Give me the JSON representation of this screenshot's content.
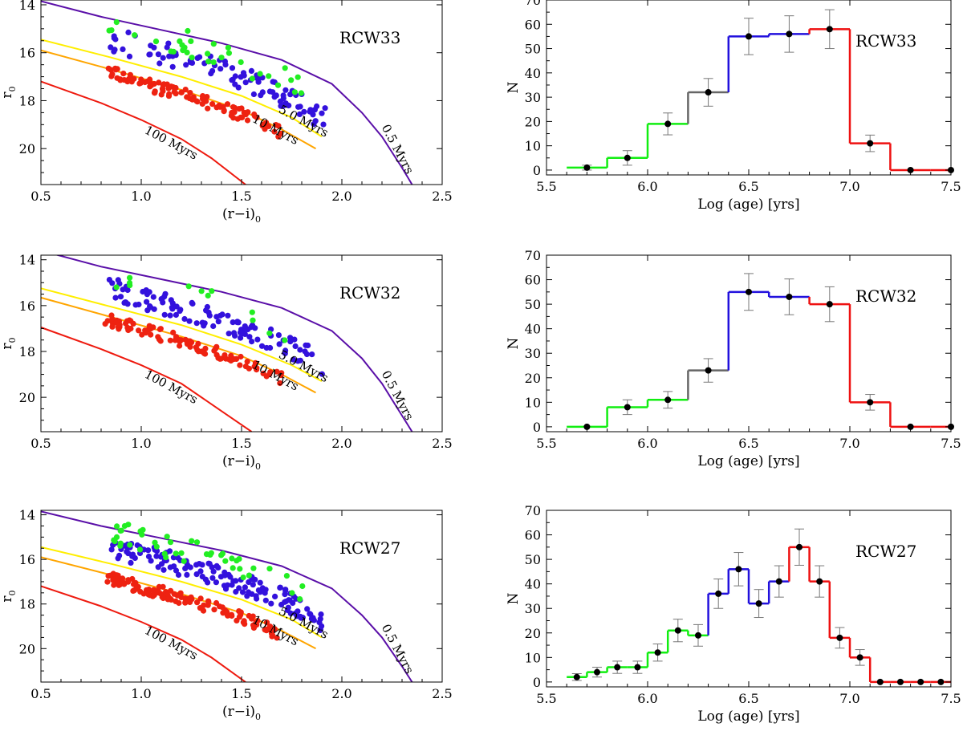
{
  "colors": {
    "frame": "#000000",
    "iso_05": "#5a0fa8",
    "iso_5": "#ffee00",
    "iso_10": "#ffa500",
    "iso_100": "#ee1a0f",
    "dot_young": "#22ee22",
    "dot_mid": "#3311dd",
    "dot_old": "#ee2211",
    "hist_young": "#11ee11",
    "hist_mid": "#2211dd",
    "hist_mixed": "#666666",
    "hist_old": "#ee1111",
    "errorbar": "#777777"
  },
  "chart_data": [
    {
      "type": "scatter",
      "panel": "left",
      "row": 1,
      "region_label": "RCW33",
      "xlabel": "(r−i)",
      "xlabel_sub": "0",
      "ylabel": "r",
      "ylabel_sub": "0",
      "xlim": [
        0.5,
        2.5
      ],
      "ylim": [
        21.5,
        13.8
      ],
      "x_ticks": [
        "0.5",
        "1.0",
        "1.5",
        "2.0",
        "2.5"
      ],
      "y_ticks": [
        "14",
        "16",
        "18",
        "20"
      ],
      "isochrones": [
        {
          "name": "0.5 Myrs",
          "label": "0.5 Myrs",
          "color_key": "iso_05",
          "points": [
            [
              0.5,
              13.85
            ],
            [
              0.8,
              14.5
            ],
            [
              1.1,
              15.05
            ],
            [
              1.4,
              15.6
            ],
            [
              1.7,
              16.3
            ],
            [
              1.95,
              17.3
            ],
            [
              2.1,
              18.5
            ],
            [
              2.2,
              19.5
            ],
            [
              2.3,
              20.8
            ],
            [
              2.35,
              21.5
            ]
          ]
        },
        {
          "name": "5.0 Myrs",
          "label": "5.0 Myrs",
          "color_key": "iso_5",
          "points": [
            [
              0.5,
              15.45
            ],
            [
              0.85,
              16.2
            ],
            [
              1.2,
              17.0
            ],
            [
              1.5,
              17.8
            ],
            [
              1.75,
              18.7
            ],
            [
              1.9,
              19.5
            ]
          ]
        },
        {
          "name": "10 Myrs",
          "label": "10 Myrs",
          "color_key": "iso_10",
          "points": [
            [
              0.5,
              15.9
            ],
            [
              0.85,
              16.7
            ],
            [
              1.2,
              17.55
            ],
            [
              1.5,
              18.4
            ],
            [
              1.7,
              19.2
            ],
            [
              1.87,
              20.0
            ]
          ]
        },
        {
          "name": "100 Myrs",
          "label": "100 Myrs",
          "color_key": "iso_100",
          "points": [
            [
              0.5,
              17.2
            ],
            [
              0.8,
              18.1
            ],
            [
              1.0,
              18.8
            ],
            [
              1.2,
              19.6
            ],
            [
              1.35,
              20.4
            ],
            [
              1.52,
              21.5
            ]
          ]
        }
      ],
      "iso_label_positions": {
        "0.5 Myrs": [
          2.26,
          20.1,
          62
        ],
        "5.0 Myrs": [
          1.8,
          19.0,
          28
        ],
        "10 Myrs": [
          1.66,
          19.35,
          28
        ],
        "100 Myrs": [
          1.14,
          19.9,
          28
        ]
      },
      "seed": 11,
      "star_counts": {
        "young": 32,
        "mid": 95,
        "old": 100
      }
    },
    {
      "type": "histogram",
      "panel": "right",
      "row": 1,
      "region_label": "RCW33",
      "xlabel": "Log (age) [yrs]",
      "ylabel": "N",
      "xlim": [
        5.5,
        7.5
      ],
      "ylim": [
        -2,
        70
      ],
      "x_ticks": [
        "5.5",
        "6.0",
        "6.5",
        "7.0",
        "7.5"
      ],
      "y_ticks": [
        "0",
        "10",
        "20",
        "30",
        "40",
        "50",
        "60",
        "70"
      ],
      "bin_edges": [
        5.6,
        5.8,
        6.0,
        6.2,
        6.4,
        6.6,
        6.8,
        7.0,
        7.2,
        7.4,
        7.6
      ],
      "counts": [
        1,
        5,
        19,
        32,
        55,
        56,
        58,
        11,
        0,
        0
      ],
      "errors": [
        1,
        3,
        4.5,
        5.7,
        7.5,
        7.5,
        8,
        3.4,
        0,
        0
      ],
      "centers": [
        5.7,
        5.9,
        6.1,
        6.3,
        6.5,
        6.7,
        6.9,
        7.1,
        7.3,
        7.5
      ],
      "bin_colors": [
        "hist_young",
        "hist_young",
        "hist_young",
        "hist_mixed",
        "hist_mid",
        "hist_mid",
        "hist_old",
        "hist_old",
        "hist_old",
        "hist_old"
      ]
    },
    {
      "type": "scatter",
      "panel": "left",
      "row": 2,
      "region_label": "RCW32",
      "xlabel": "(r−i)",
      "xlabel_sub": "0",
      "ylabel": "r",
      "ylabel_sub": "0",
      "xlim": [
        0.5,
        2.5
      ],
      "ylim": [
        21.5,
        13.8
      ],
      "x_ticks": [
        "0.5",
        "1.0",
        "1.5",
        "2.0",
        "2.5"
      ],
      "y_ticks": [
        "14",
        "16",
        "18",
        "20"
      ],
      "isochrones": [
        {
          "name": "0.5 Myrs",
          "label": "0.5 Myrs",
          "color_key": "iso_05",
          "points": [
            [
              0.5,
              13.6
            ],
            [
              0.8,
              14.3
            ],
            [
              1.1,
              14.85
            ],
            [
              1.4,
              15.4
            ],
            [
              1.7,
              16.1
            ],
            [
              1.95,
              17.1
            ],
            [
              2.1,
              18.3
            ],
            [
              2.2,
              19.4
            ],
            [
              2.3,
              20.8
            ],
            [
              2.35,
              21.5
            ]
          ]
        },
        {
          "name": "5.0 Myrs",
          "label": "5.0 Myrs",
          "color_key": "iso_5",
          "points": [
            [
              0.5,
              15.25
            ],
            [
              0.85,
              16.05
            ],
            [
              1.2,
              16.85
            ],
            [
              1.5,
              17.7
            ],
            [
              1.75,
              18.6
            ],
            [
              1.9,
              19.3
            ]
          ]
        },
        {
          "name": "10 Myrs",
          "label": "10 Myrs",
          "color_key": "iso_10",
          "points": [
            [
              0.5,
              15.65
            ],
            [
              0.85,
              16.5
            ],
            [
              1.2,
              17.35
            ],
            [
              1.5,
              18.2
            ],
            [
              1.7,
              19.0
            ],
            [
              1.87,
              19.8
            ]
          ]
        },
        {
          "name": "100 Myrs",
          "label": "100 Myrs",
          "color_key": "iso_100",
          "points": [
            [
              0.5,
              16.95
            ],
            [
              0.8,
              17.9
            ],
            [
              1.0,
              18.6
            ],
            [
              1.2,
              19.4
            ],
            [
              1.4,
              20.6
            ],
            [
              1.55,
              21.5
            ]
          ]
        }
      ],
      "iso_label_positions": {
        "0.5 Myrs": [
          2.26,
          20.0,
          62
        ],
        "5.0 Myrs": [
          1.8,
          18.8,
          28
        ],
        "10 Myrs": [
          1.66,
          19.2,
          28
        ],
        "100 Myrs": [
          1.14,
          19.7,
          28
        ]
      },
      "seed": 23,
      "star_counts": {
        "young": 12,
        "mid": 105,
        "old": 95
      }
    },
    {
      "type": "histogram",
      "panel": "right",
      "row": 2,
      "region_label": "RCW32",
      "xlabel": "Log (age) [yrs]",
      "ylabel": "N",
      "xlim": [
        5.5,
        7.5
      ],
      "ylim": [
        -2,
        70
      ],
      "x_ticks": [
        "5.5",
        "6.0",
        "6.5",
        "7.0",
        "7.5"
      ],
      "y_ticks": [
        "0",
        "10",
        "20",
        "30",
        "40",
        "50",
        "60",
        "70"
      ],
      "bin_edges": [
        5.6,
        5.8,
        6.0,
        6.2,
        6.4,
        6.6,
        6.8,
        7.0,
        7.2,
        7.4,
        7.6
      ],
      "counts": [
        0,
        8,
        11,
        23,
        55,
        53,
        50,
        10,
        0,
        0
      ],
      "errors": [
        0,
        3,
        3.4,
        4.8,
        7.5,
        7.3,
        7.1,
        3.2,
        0,
        0
      ],
      "centers": [
        5.7,
        5.9,
        6.1,
        6.3,
        6.5,
        6.7,
        6.9,
        7.1,
        7.3,
        7.5
      ],
      "bin_colors": [
        "hist_young",
        "hist_young",
        "hist_young",
        "hist_mixed",
        "hist_mid",
        "hist_mid",
        "hist_old",
        "hist_old",
        "hist_old",
        "hist_old"
      ]
    },
    {
      "type": "scatter",
      "panel": "left",
      "row": 3,
      "region_label": "RCW27",
      "xlabel": "(r−i)",
      "xlabel_sub": "0",
      "ylabel": "r",
      "ylabel_sub": "0",
      "xlim": [
        0.5,
        2.5
      ],
      "ylim": [
        21.5,
        13.8
      ],
      "x_ticks": [
        "0.5",
        "1.0",
        "1.5",
        "2.0",
        "2.5"
      ],
      "y_ticks": [
        "14",
        "16",
        "18",
        "20"
      ],
      "isochrones": [
        {
          "name": "0.5 Myrs",
          "label": "0.5 Myrs",
          "color_key": "iso_05",
          "points": [
            [
              0.5,
              13.85
            ],
            [
              0.8,
              14.5
            ],
            [
              1.1,
              15.05
            ],
            [
              1.4,
              15.6
            ],
            [
              1.7,
              16.3
            ],
            [
              1.95,
              17.3
            ],
            [
              2.1,
              18.5
            ],
            [
              2.2,
              19.5
            ],
            [
              2.3,
              20.8
            ],
            [
              2.35,
              21.5
            ]
          ]
        },
        {
          "name": "5.0 Myrs",
          "label": "5.0 Myrs",
          "color_key": "iso_5",
          "points": [
            [
              0.5,
              15.45
            ],
            [
              0.85,
              16.2
            ],
            [
              1.2,
              17.0
            ],
            [
              1.5,
              17.8
            ],
            [
              1.75,
              18.7
            ],
            [
              1.9,
              19.5
            ]
          ]
        },
        {
          "name": "10 Myrs",
          "label": "10 Myrs",
          "color_key": "iso_10",
          "points": [
            [
              0.5,
              15.9
            ],
            [
              0.85,
              16.7
            ],
            [
              1.2,
              17.55
            ],
            [
              1.5,
              18.4
            ],
            [
              1.7,
              19.2
            ],
            [
              1.87,
              20.0
            ]
          ]
        },
        {
          "name": "100 Myrs",
          "label": "100 Myrs",
          "color_key": "iso_100",
          "points": [
            [
              0.5,
              17.2
            ],
            [
              0.8,
              18.1
            ],
            [
              1.0,
              18.8
            ],
            [
              1.2,
              19.6
            ],
            [
              1.35,
              20.4
            ],
            [
              1.52,
              21.5
            ]
          ]
        }
      ],
      "iso_label_positions": {
        "0.5 Myrs": [
          2.26,
          20.1,
          62
        ],
        "5.0 Myrs": [
          1.8,
          19.0,
          28
        ],
        "10 Myrs": [
          1.66,
          19.35,
          28
        ],
        "100 Myrs": [
          1.14,
          19.9,
          28
        ]
      },
      "seed": 37,
      "star_counts": {
        "young": 45,
        "mid": 140,
        "old": 120
      }
    },
    {
      "type": "histogram",
      "panel": "right",
      "row": 3,
      "region_label": "RCW27",
      "xlabel": "Log (age) [yrs]",
      "ylabel": "N",
      "xlim": [
        5.5,
        7.5
      ],
      "ylim": [
        -2,
        70
      ],
      "x_ticks": [
        "5.5",
        "6.0",
        "6.5",
        "7.0",
        "7.5"
      ],
      "y_ticks": [
        "0",
        "10",
        "20",
        "30",
        "40",
        "50",
        "60",
        "70"
      ],
      "bin_edges": [
        5.6,
        5.7,
        5.8,
        5.9,
        6.0,
        6.1,
        6.2,
        6.3,
        6.4,
        6.5,
        6.6,
        6.7,
        6.8,
        6.9,
        7.0,
        7.1,
        7.2,
        7.3,
        7.4,
        7.5
      ],
      "counts": [
        2,
        4,
        6,
        6,
        12,
        21,
        19,
        36,
        46,
        32,
        41,
        55,
        41,
        18,
        10,
        0,
        0,
        0,
        0
      ],
      "errors": [
        1.4,
        2,
        2.5,
        2.5,
        3.5,
        4.6,
        4.4,
        6,
        6.8,
        5.7,
        6.4,
        7.4,
        6.4,
        4.2,
        3.2,
        0,
        0,
        0,
        0
      ],
      "centers": [
        5.65,
        5.75,
        5.85,
        5.95,
        6.05,
        6.15,
        6.25,
        6.35,
        6.45,
        6.55,
        6.65,
        6.75,
        6.85,
        6.95,
        7.05,
        7.15,
        7.25,
        7.35,
        7.45
      ],
      "bin_colors": [
        "hist_young",
        "hist_young",
        "hist_young",
        "hist_young",
        "hist_young",
        "hist_young",
        "hist_young",
        "hist_mid",
        "hist_mid",
        "hist_mid",
        "hist_mid",
        "hist_old",
        "hist_old",
        "hist_old",
        "hist_old",
        "hist_old",
        "hist_old",
        "hist_old",
        "hist_old"
      ]
    }
  ]
}
